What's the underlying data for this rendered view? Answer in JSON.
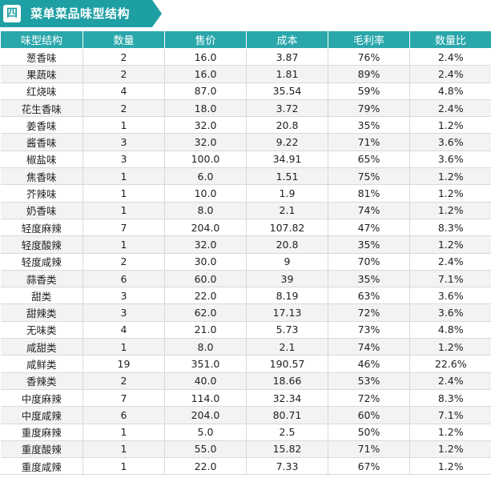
{
  "section": {
    "badge": "四",
    "title": "菜单菜品味型结构",
    "accent_color": "#1e9fa3"
  },
  "table": {
    "headers": [
      "味型结构",
      "数量",
      "售价",
      "成本",
      "毛利率",
      "数量比"
    ],
    "rows": [
      [
        "葱香味",
        "2",
        "16.0",
        "3.87",
        "76%",
        "2.4%"
      ],
      [
        "果蔬味",
        "2",
        "16.0",
        "1.81",
        "89%",
        "2.4%"
      ],
      [
        "红烧味",
        "4",
        "87.0",
        "35.54",
        "59%",
        "4.8%"
      ],
      [
        "花生香味",
        "2",
        "18.0",
        "3.72",
        "79%",
        "2.4%"
      ],
      [
        "姜香味",
        "1",
        "32.0",
        "20.8",
        "35%",
        "1.2%"
      ],
      [
        "酱香味",
        "3",
        "32.0",
        "9.22",
        "71%",
        "3.6%"
      ],
      [
        "椒盐味",
        "3",
        "100.0",
        "34.91",
        "65%",
        "3.6%"
      ],
      [
        "焦香味",
        "1",
        "6.0",
        "1.51",
        "75%",
        "1.2%"
      ],
      [
        "芥辣味",
        "1",
        "10.0",
        "1.9",
        "81%",
        "1.2%"
      ],
      [
        "奶香味",
        "1",
        "8.0",
        "2.1",
        "74%",
        "1.2%"
      ],
      [
        "轻度麻辣",
        "7",
        "204.0",
        "107.82",
        "47%",
        "8.3%"
      ],
      [
        "轻度酸辣",
        "1",
        "32.0",
        "20.8",
        "35%",
        "1.2%"
      ],
      [
        "轻度咸辣",
        "2",
        "30.0",
        "9",
        "70%",
        "2.4%"
      ],
      [
        "蒜香类",
        "6",
        "60.0",
        "39",
        "35%",
        "7.1%"
      ],
      [
        "甜类",
        "3",
        "22.0",
        "8.19",
        "63%",
        "3.6%"
      ],
      [
        "甜辣类",
        "3",
        "62.0",
        "17.13",
        "72%",
        "3.6%"
      ],
      [
        "无味类",
        "4",
        "21.0",
        "5.73",
        "73%",
        "4.8%"
      ],
      [
        "咸甜类",
        "1",
        "8.0",
        "2.1",
        "74%",
        "1.2%"
      ],
      [
        "咸鲜类",
        "19",
        "351.0",
        "190.57",
        "46%",
        "22.6%"
      ],
      [
        "香辣类",
        "2",
        "40.0",
        "18.66",
        "53%",
        "2.4%"
      ],
      [
        "中度麻辣",
        "7",
        "114.0",
        "32.34",
        "72%",
        "8.3%"
      ],
      [
        "中度咸辣",
        "6",
        "204.0",
        "80.71",
        "60%",
        "7.1%"
      ],
      [
        "重度麻辣",
        "1",
        "5.0",
        "2.5",
        "50%",
        "1.2%"
      ],
      [
        "重度酸辣",
        "1",
        "55.0",
        "15.82",
        "71%",
        "1.2%"
      ],
      [
        "重度咸辣",
        "1",
        "22.0",
        "7.33",
        "67%",
        "1.2%"
      ]
    ]
  }
}
